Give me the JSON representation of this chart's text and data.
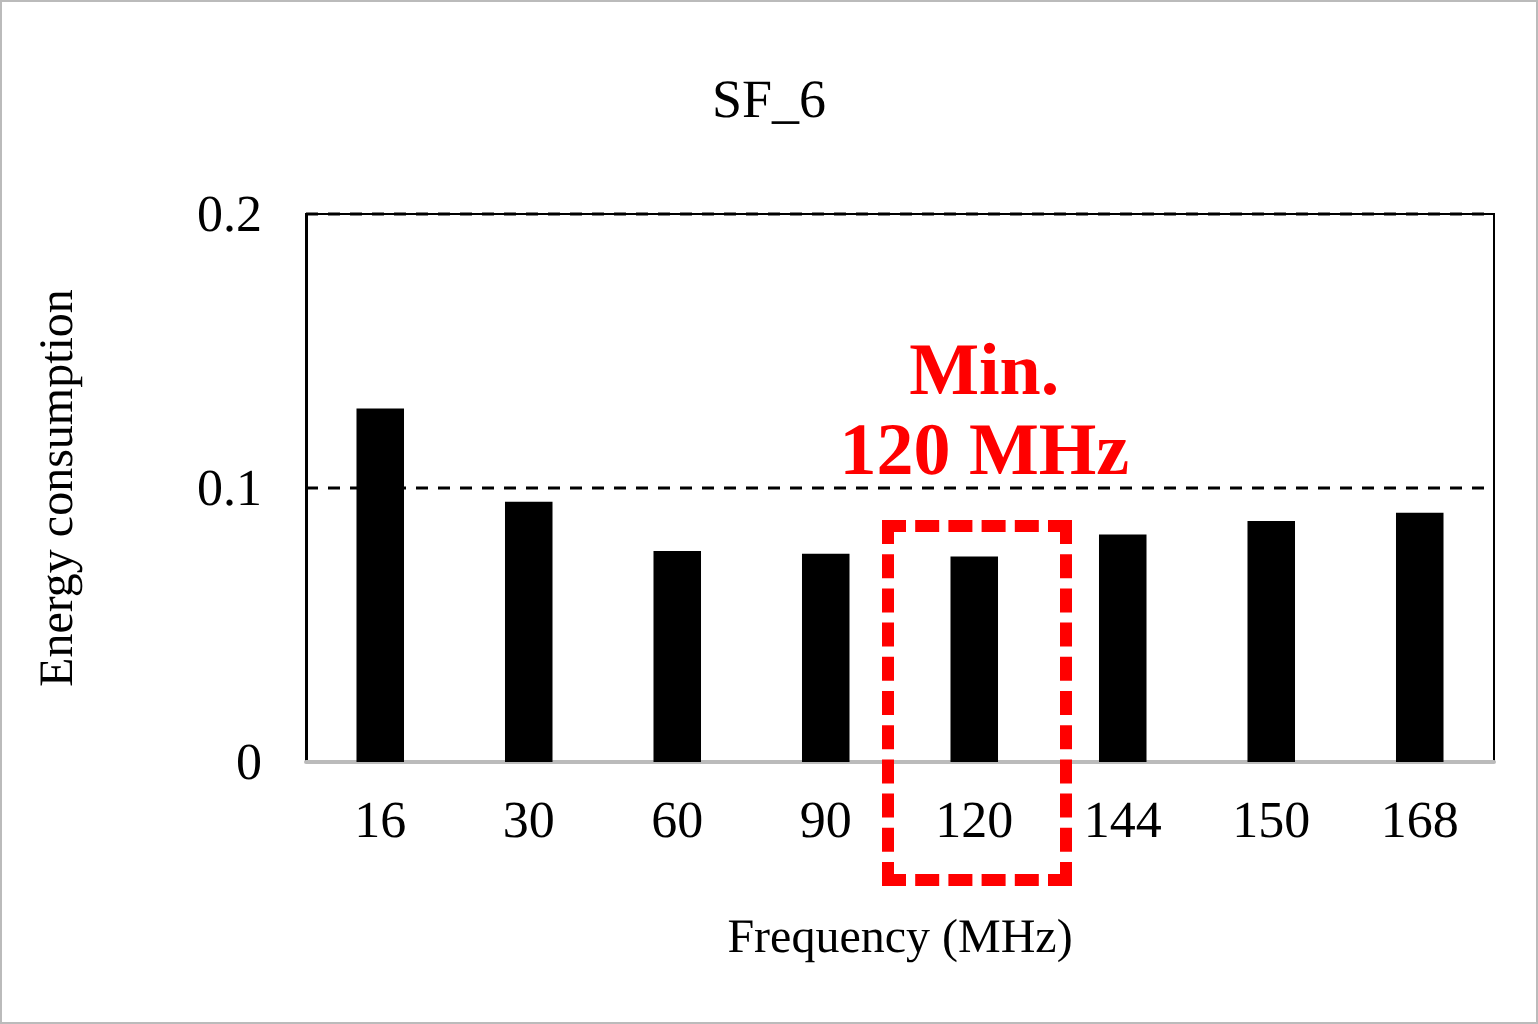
{
  "chart_data": {
    "type": "bar",
    "title": "SF_6",
    "xlabel": "Frequency (MHz)",
    "ylabel": "Energy consumption",
    "categories": [
      "16",
      "30",
      "60",
      "90",
      "120",
      "144",
      "150",
      "168"
    ],
    "values": [
      0.129,
      0.095,
      0.077,
      0.076,
      0.075,
      0.083,
      0.088,
      0.091
    ],
    "color": "#000000",
    "ylim": [
      0,
      0.2
    ],
    "yticks": [
      0,
      0.1,
      0.2
    ],
    "grid": "y",
    "annotations": [
      "Min.\n120 MHz"
    ]
  }
}
